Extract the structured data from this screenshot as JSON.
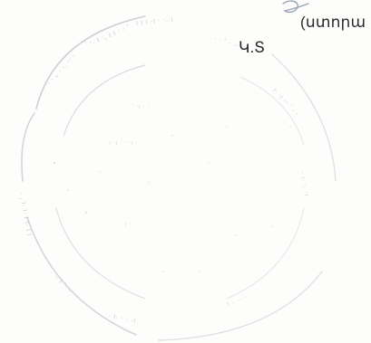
{
  "document": {
    "signature_caption": "(ստորա",
    "stamp_place_label": "Կ.Տ"
  },
  "colors": {
    "seal_ink": "#b9bcc4",
    "text": "#2a2a2a",
    "signature_ink": "#9aa3b5"
  },
  "icons": {
    "seal": "round-official-seal-faded",
    "signature": "handwritten-signature-fragment"
  }
}
